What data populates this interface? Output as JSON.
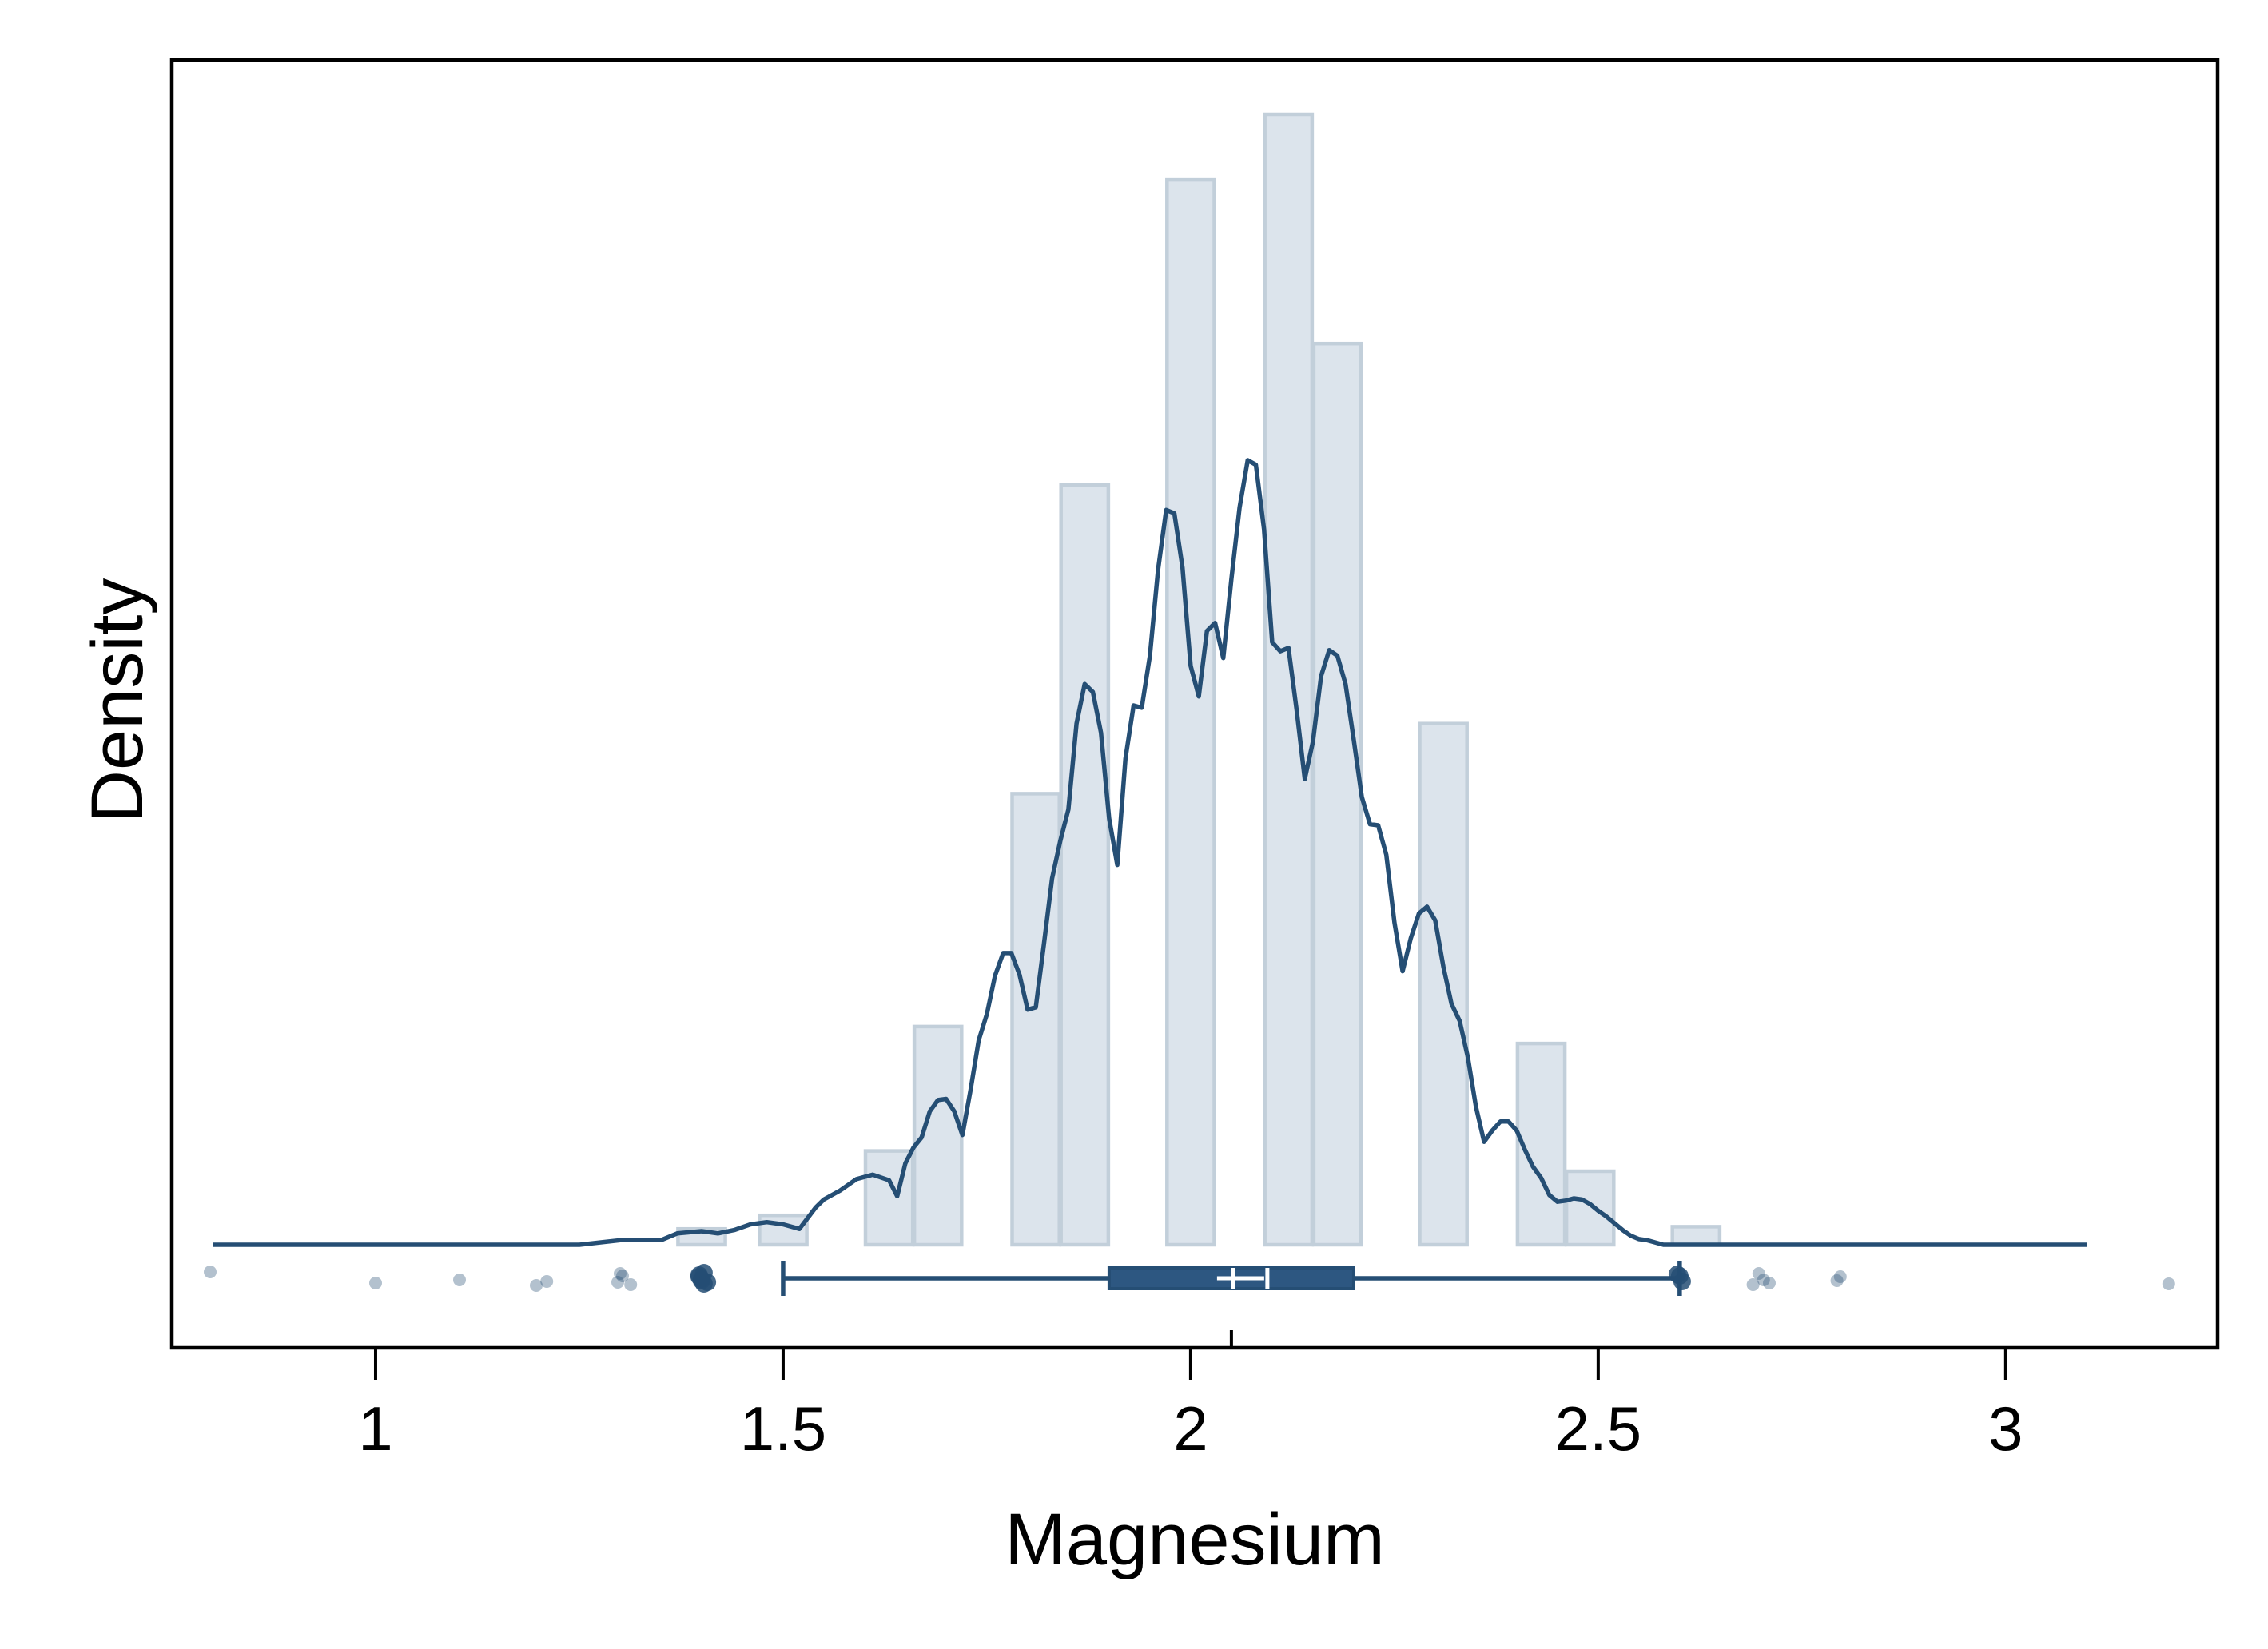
{
  "chart_data": {
    "type": "histogram",
    "xlabel": "Magnesium",
    "ylabel": "Density",
    "xlim": [
      0.75,
      3.26
    ],
    "ylim": [
      0,
      1
    ],
    "x_ticks": [
      1,
      1.5,
      2,
      2.5,
      3
    ],
    "x_tick_labels": [
      "1",
      "1.5",
      "2",
      "2.5",
      "3"
    ],
    "y_ticks": [],
    "grid": false,
    "colors": {
      "bars": "#dce4ec",
      "bar_edges": "#c2cfda",
      "kde": "#254e74",
      "box": "#2d5781",
      "points": "#254e74"
    },
    "histogram": {
      "bin_width": 0.058,
      "bars": [
        {
          "x": 1.4,
          "height": 0.014
        },
        {
          "x": 1.5,
          "height": 0.026
        },
        {
          "x": 1.63,
          "height": 0.083
        },
        {
          "x": 1.69,
          "height": 0.193
        },
        {
          "x": 1.81,
          "height": 0.399
        },
        {
          "x": 1.87,
          "height": 0.672
        },
        {
          "x": 2.0,
          "height": 0.942
        },
        {
          "x": 2.12,
          "height": 1.0
        },
        {
          "x": 2.18,
          "height": 0.797
        },
        {
          "x": 2.31,
          "height": 0.461
        },
        {
          "x": 2.43,
          "height": 0.178
        },
        {
          "x": 2.49,
          "height": 0.065
        },
        {
          "x": 2.62,
          "height": 0.016
        }
      ]
    },
    "kde": {
      "x": [
        0.8,
        0.9,
        1.0,
        1.1,
        1.2,
        1.25,
        1.3,
        1.33,
        1.35,
        1.37,
        1.4,
        1.42,
        1.44,
        1.46,
        1.48,
        1.5,
        1.52,
        1.54,
        1.55,
        1.57,
        1.59,
        1.61,
        1.63,
        1.64,
        1.65,
        1.66,
        1.67,
        1.68,
        1.69,
        1.7,
        1.71,
        1.72,
        1.73,
        1.74,
        1.75,
        1.76,
        1.77,
        1.78,
        1.79,
        1.8,
        1.81,
        1.82,
        1.83,
        1.84,
        1.85,
        1.86,
        1.87,
        1.88,
        1.89,
        1.9,
        1.91,
        1.92,
        1.93,
        1.94,
        1.95,
        1.96,
        1.97,
        1.98,
        1.99,
        2.0,
        2.01,
        2.02,
        2.03,
        2.04,
        2.05,
        2.06,
        2.07,
        2.08,
        2.09,
        2.1,
        2.11,
        2.12,
        2.13,
        2.14,
        2.15,
        2.16,
        2.17,
        2.18,
        2.19,
        2.2,
        2.21,
        2.22,
        2.23,
        2.24,
        2.25,
        2.26,
        2.27,
        2.28,
        2.29,
        2.3,
        2.31,
        2.32,
        2.33,
        2.34,
        2.35,
        2.36,
        2.37,
        2.38,
        2.39,
        2.4,
        2.41,
        2.42,
        2.43,
        2.44,
        2.45,
        2.46,
        2.47,
        2.48,
        2.49,
        2.5,
        2.51,
        2.52,
        2.53,
        2.54,
        2.55,
        2.56,
        2.58,
        2.6,
        2.62,
        2.65,
        2.7,
        2.8,
        2.9,
        3.0,
        3.1,
        3.2
      ],
      "y": [
        0.0,
        0.0,
        0.0,
        0.0,
        0.0,
        0.0,
        0.004,
        0.004,
        0.004,
        0.01,
        0.012,
        0.01,
        0.013,
        0.018,
        0.02,
        0.018,
        0.014,
        0.033,
        0.04,
        0.048,
        0.058,
        0.062,
        0.057,
        0.043,
        0.072,
        0.086,
        0.095,
        0.118,
        0.128,
        0.129,
        0.118,
        0.097,
        0.137,
        0.181,
        0.204,
        0.238,
        0.258,
        0.258,
        0.239,
        0.208,
        0.21,
        0.266,
        0.324,
        0.357,
        0.385,
        0.461,
        0.496,
        0.489,
        0.453,
        0.377,
        0.336,
        0.43,
        0.477,
        0.475,
        0.521,
        0.597,
        0.65,
        0.647,
        0.599,
        0.512,
        0.485,
        0.543,
        0.55,
        0.519,
        0.589,
        0.652,
        0.694,
        0.69,
        0.633,
        0.533,
        0.525,
        0.528,
        0.473,
        0.412,
        0.445,
        0.503,
        0.526,
        0.521,
        0.496,
        0.447,
        0.396,
        0.372,
        0.371,
        0.345,
        0.285,
        0.242,
        0.271,
        0.293,
        0.299,
        0.287,
        0.246,
        0.213,
        0.198,
        0.166,
        0.122,
        0.091,
        0.101,
        0.109,
        0.109,
        0.101,
        0.084,
        0.069,
        0.059,
        0.044,
        0.038,
        0.039,
        0.041,
        0.04,
        0.036,
        0.03,
        0.025,
        0.019,
        0.013,
        0.008,
        0.005,
        0.004,
        0.0,
        0.0,
        0.0,
        0.0,
        0.0,
        0.0,
        0.0,
        0.0,
        0.0
      ]
    },
    "boxplot": {
      "whisker_low": 1.5,
      "q1": 1.9,
      "median": 2.1,
      "mean": 2.05,
      "q3": 2.2,
      "whisker_high": 2.6,
      "notch_low": 2.05,
      "notch_high": 2.1
    },
    "points": [
      0.8,
      1.0,
      1.1,
      1.2,
      1.21,
      1.3,
      1.3,
      1.3,
      1.31,
      1.4,
      1.4,
      1.4,
      1.4,
      1.4,
      1.4,
      1.41,
      2.6,
      2.6,
      2.6,
      2.69,
      2.7,
      2.7,
      2.71,
      2.79,
      2.8,
      3.2
    ]
  }
}
